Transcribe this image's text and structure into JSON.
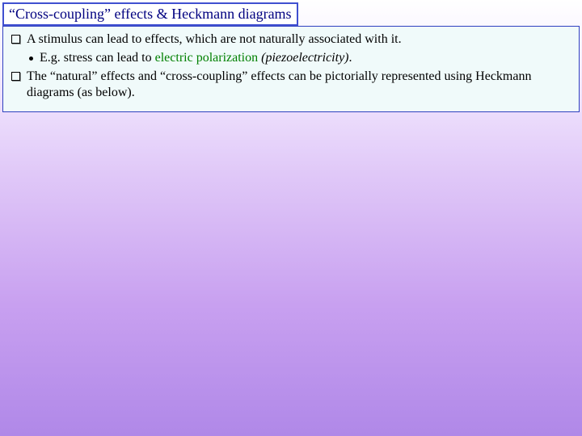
{
  "title": "“Cross-coupling” effects & Heckmann diagrams",
  "bullets": {
    "b1": "A stimulus can lead to effects, which are not naturally associated with it.",
    "sub1_prefix": "E.g. stress can lead to ",
    "sub1_green": "electric polarization",
    "sub1_italic": " (piezoelectricity)",
    "sub1_suffix": ".",
    "b2": "The  “natural” effects and “cross-coupling” effects can be pictorially represented using Heckmann diagrams (as below)."
  },
  "colors": {
    "title_border": "#4050d0",
    "title_text": "#000080",
    "content_border": "#3040c0",
    "content_bg": "#f0fafa",
    "green": "#008000",
    "body_text": "#000000"
  }
}
